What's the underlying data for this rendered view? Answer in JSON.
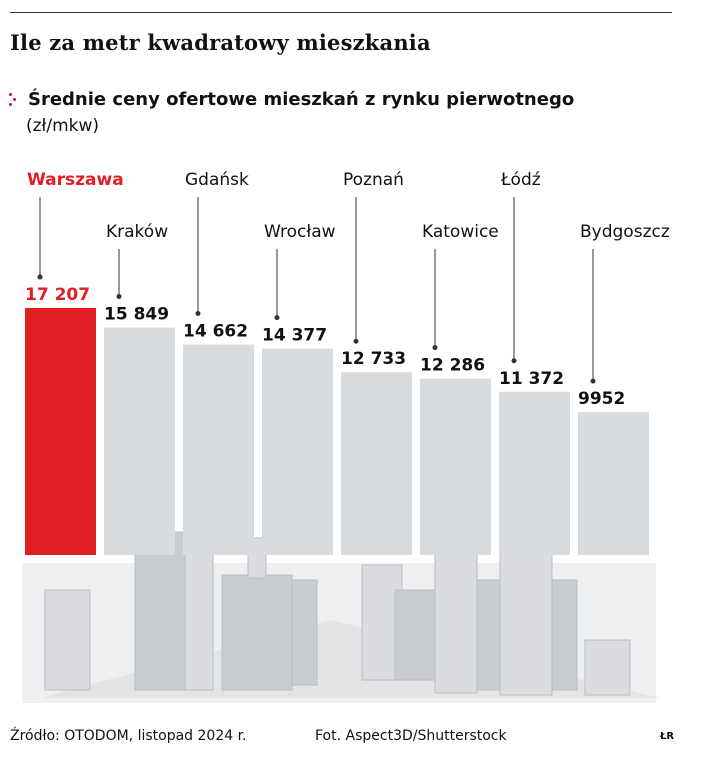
{
  "title": "Ile za metr kwadratowy mieszkania",
  "subtitle": "Średnie ceny ofertowe mieszkań z rynku pierwotnego",
  "unit": "(zł/mkw)",
  "icons": [
    "dots-icon"
  ],
  "colors": {
    "highlight": "#e01e24",
    "bar": "#d9dcdf",
    "label": "#111111"
  },
  "chart_data": {
    "type": "bar",
    "categories": [
      "Warszawa",
      "Kraków",
      "Gdańsk",
      "Wrocław",
      "Poznań",
      "Katowice",
      "Łódź",
      "Bydgoszcz"
    ],
    "values": [
      17207,
      15849,
      14662,
      14377,
      12733,
      12286,
      11372,
      9952
    ],
    "value_labels": [
      "17 207",
      "15 849",
      "14 662",
      "14 377",
      "12 733",
      "12 286",
      "11 372",
      "9952"
    ],
    "highlight": "Warszawa",
    "ylim": [
      0,
      17207
    ],
    "grid": false
  },
  "footer": {
    "source": "Źródło: OTODOM, listopad 2024 r.",
    "photo": "Fot. Aspect3D/Shutterstock",
    "logo": "ŁR"
  }
}
